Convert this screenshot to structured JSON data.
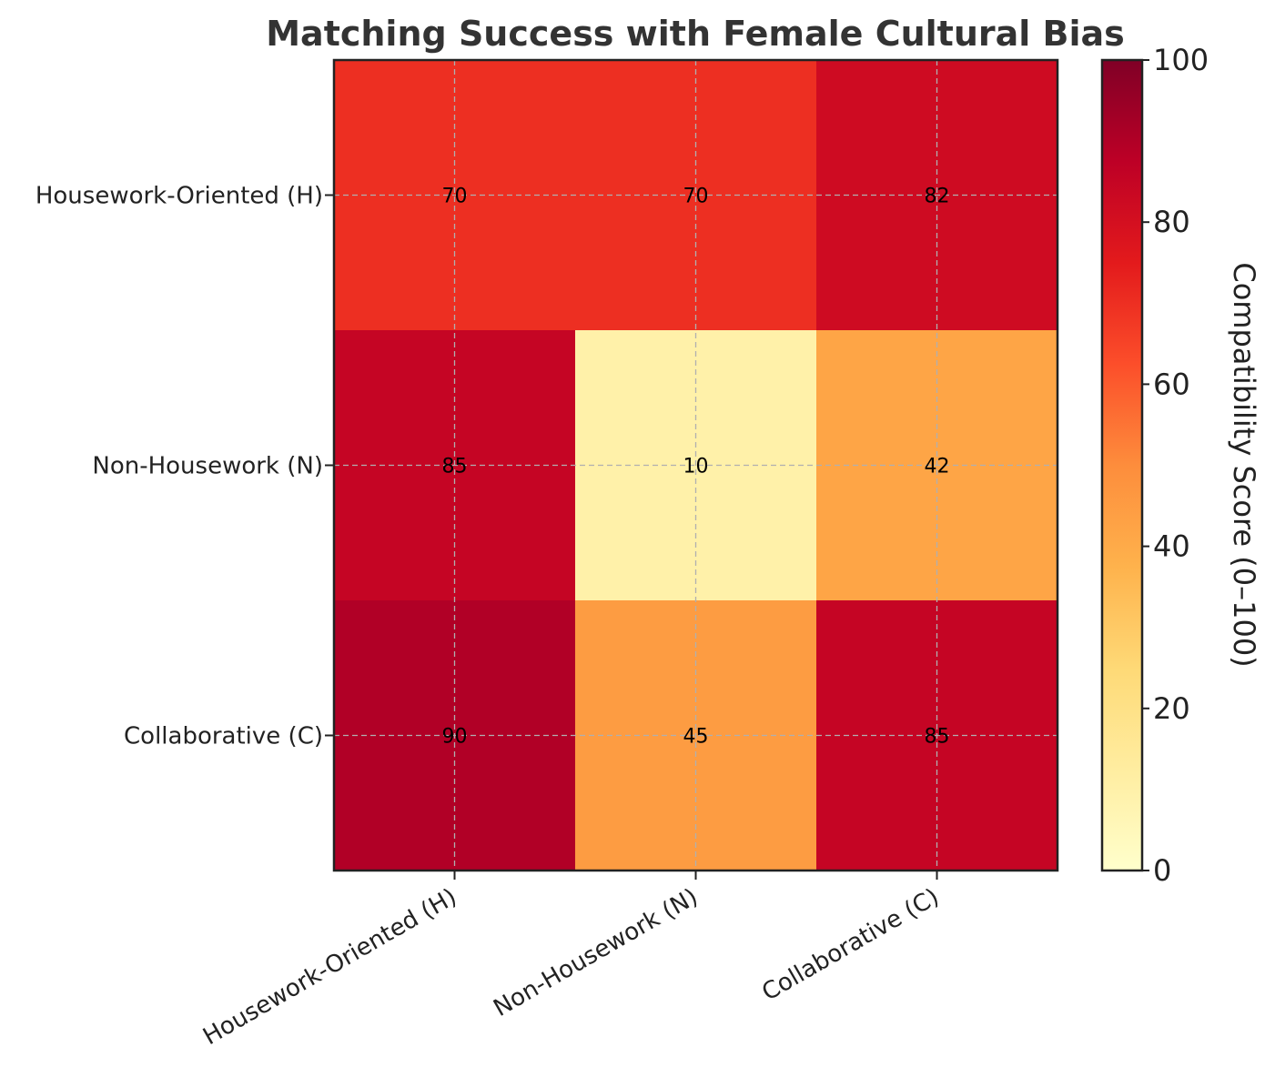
{
  "chart_data": {
    "type": "heatmap",
    "title": "Matching Success with Female Cultural Bias",
    "xlabel": "",
    "ylabel": "",
    "x_categories": [
      "Housework-Oriented (H)",
      "Non-Housework (N)",
      "Collaborative (C)"
    ],
    "y_categories": [
      "Housework-Oriented (H)",
      "Non-Housework (N)",
      "Collaborative (C)"
    ],
    "values": [
      [
        70,
        70,
        82
      ],
      [
        85,
        10,
        42
      ],
      [
        90,
        45,
        85
      ]
    ],
    "colorbar": {
      "label": "Compatibility Score (0–100)",
      "min": 0,
      "max": 100,
      "ticks": [
        "0",
        "20",
        "40",
        "60",
        "80",
        "100"
      ],
      "tick_values": [
        0,
        20,
        40,
        60,
        80,
        100
      ],
      "colormap": "YlOrRd",
      "stops": [
        "#ffffcc",
        "#ffeda0",
        "#fed976",
        "#feb24c",
        "#fd8d3c",
        "#fc4e2a",
        "#e31a1c",
        "#bd0026",
        "#800026"
      ]
    },
    "grid": true
  }
}
